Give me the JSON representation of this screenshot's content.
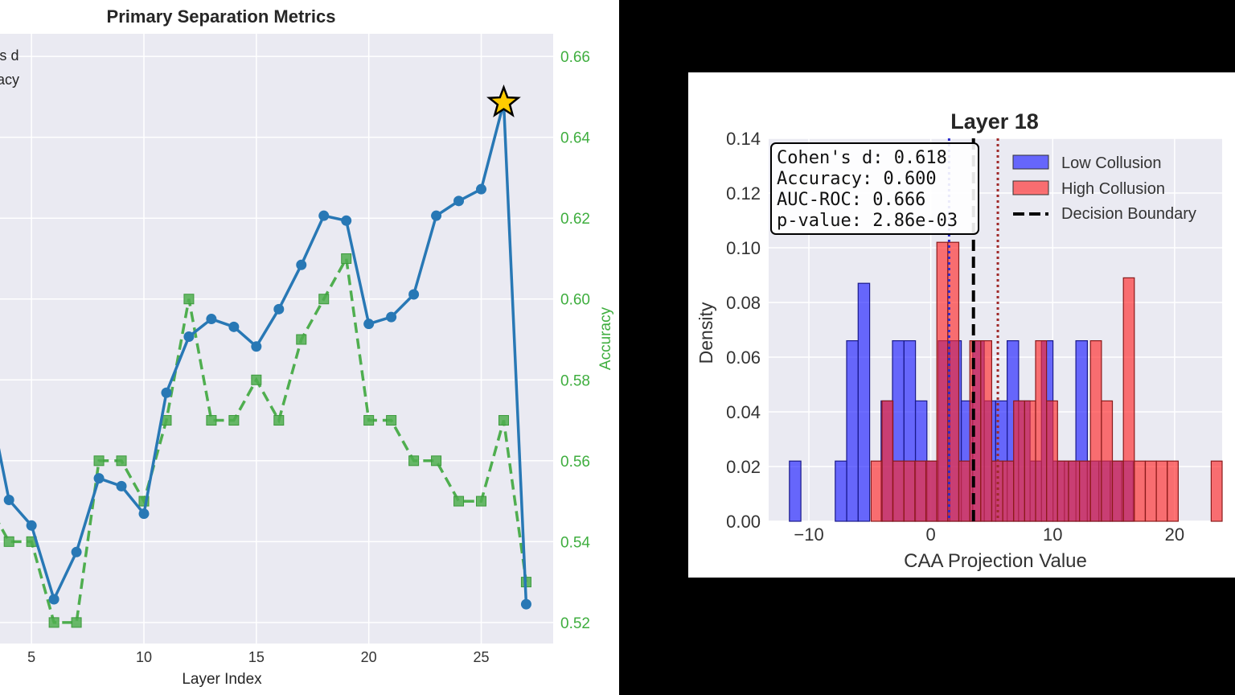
{
  "colors": {
    "cohen": "#2878b5",
    "accuracy": "#4fae4f",
    "accuracy_text": "#3fae3f",
    "low": "#1f1fff",
    "high": "#ff2a2a",
    "star": "#ffcc00",
    "plot_bg": "#eaeaf2"
  },
  "chart_data": [
    {
      "type": "line",
      "title": "Primary Separation Metrics",
      "xlabel": "Layer Index",
      "y2label": "Accuracy",
      "legend_partial": [
        "'s d",
        "acy"
      ],
      "legend_placement": "top-left",
      "grid": true,
      "xlim": [
        3.6,
        28.2
      ],
      "y1lim": [
        0.0,
        0.62
      ],
      "y2lim": [
        0.5148,
        0.6656
      ],
      "xticks": [
        5,
        10,
        15,
        20,
        25
      ],
      "y2ticks": [
        0.52,
        0.54,
        0.56,
        0.58,
        0.6,
        0.62,
        0.64,
        0.66
      ],
      "y2ticklabels": [
        "0.52",
        "0.54",
        "0.56",
        "0.58",
        "0.60",
        "0.62",
        "0.64",
        "0.66"
      ],
      "x": [
        3,
        4,
        5,
        6,
        7,
        8,
        9,
        10,
        11,
        12,
        13,
        14,
        15,
        16,
        17,
        18,
        19,
        20,
        21,
        22,
        23,
        24,
        25,
        26,
        27
      ],
      "series": [
        {
          "axis": "left",
          "values": [
            0.26,
            0.146,
            0.12,
            0.045,
            0.093,
            0.168,
            0.16,
            0.132,
            0.255,
            0.312,
            0.33,
            0.322,
            0.302,
            0.34,
            0.385,
            0.435,
            0.43,
            0.325,
            0.332,
            0.355,
            0.435,
            0.45,
            0.462,
            0.55,
            0.04
          ],
          "best_layer": 26
        },
        {
          "axis": "right",
          "values": [
            0.55,
            0.54,
            0.54,
            0.52,
            0.52,
            0.56,
            0.56,
            0.55,
            0.57,
            0.6,
            0.57,
            0.57,
            0.58,
            0.57,
            0.59,
            0.6,
            0.61,
            0.57,
            0.57,
            0.56,
            0.56,
            0.55,
            0.55,
            0.57,
            0.53
          ]
        }
      ]
    },
    {
      "type": "bar",
      "title": "Layer 18",
      "xlabel": "CAA Projection Value",
      "ylabel": "Density",
      "xlim": [
        -13.3,
        23.9
      ],
      "ylim": [
        0,
        0.14
      ],
      "xticks": [
        -10,
        0,
        10,
        20
      ],
      "xticklabels": [
        "−10",
        "0",
        "10",
        "20"
      ],
      "yticks": [
        0,
        0.02,
        0.04,
        0.06,
        0.08,
        0.1,
        0.12,
        0.14
      ],
      "yticklabels": [
        "0.00",
        "0.02",
        "0.04",
        "0.06",
        "0.08",
        "0.10",
        "0.12",
        "0.14"
      ],
      "grid": true,
      "legend_placement": "top-right",
      "legend": [
        "Low Collusion",
        "High Collusion",
        "Decision Boundary"
      ],
      "stats": [
        "Cohen's d: 0.618",
        "Accuracy: 0.600",
        "AUC-ROC: 0.666",
        "p-value: 2.86e-03"
      ],
      "low_bins": {
        "start": -11.6,
        "width": 0.94,
        "heights": [
          0.022,
          0,
          0,
          0,
          0.022,
          0.066,
          0.087,
          0,
          0.044,
          0.066,
          0.066,
          0.044,
          0.022,
          0.066,
          0.066,
          0.044,
          0.066,
          0.044,
          0.044,
          0.066,
          0.044,
          0.022,
          0.066,
          0.022,
          0.022,
          0.066,
          0.022,
          0.022,
          0.022,
          0.022
        ]
      },
      "high_bins": {
        "start": -4.9,
        "width": 0.9,
        "heights": [
          0.022,
          0.044,
          0.022,
          0.022,
          0.022,
          0.022,
          0.102,
          0.102,
          0.022,
          0.066,
          0.066,
          0.022,
          0.022,
          0.044,
          0.044,
          0.066,
          0.044,
          0.022,
          0.022,
          0.022,
          0.066,
          0.044,
          0.022,
          0.089,
          0.022,
          0.022,
          0.022,
          0.022,
          0,
          0,
          0,
          0.022,
          0,
          0,
          0,
          0.044
        ]
      },
      "low_mean": 1.5,
      "decision_boundary": 3.5,
      "high_mean": 5.5
    }
  ]
}
